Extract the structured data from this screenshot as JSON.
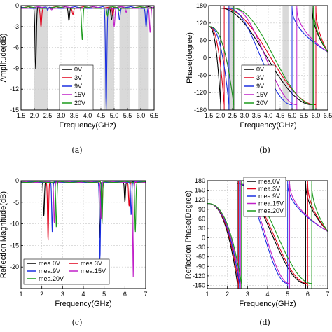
{
  "chart_data": [
    {
      "panel": "a",
      "type": "line",
      "caption": "(a)",
      "xlabel": "Frequency(GHz)",
      "ylabel": "Amplitude(dB)",
      "xlim": [
        1.5,
        6.5
      ],
      "ylim": [
        -15,
        0
      ],
      "xticks": [
        "1.5",
        "2.0",
        "2.5",
        "3.0",
        "3.5",
        "4.0",
        "4.5",
        "5.0",
        "5.5",
        "6.0",
        "6.5"
      ],
      "yticks": [
        "0",
        "-3",
        "-6",
        "-9",
        "-12",
        "-15"
      ],
      "shaded_bands": [
        [
          2.0,
          2.5
        ],
        [
          4.6,
          5.0
        ],
        [
          5.2,
          5.6
        ],
        [
          5.9,
          6.3
        ]
      ],
      "legend_position": "lower-center",
      "series": [
        {
          "name": "0V",
          "color": "#000000",
          "dips": [
            [
              2.05,
              -9.2
            ],
            [
              3.3,
              -2.2
            ],
            [
              4.9,
              -2.0
            ]
          ]
        },
        {
          "name": "3V",
          "color": "#e0001a",
          "dips": [
            [
              2.25,
              -3.0
            ],
            [
              3.45,
              -1.2
            ],
            [
              4.95,
              -1.5
            ]
          ]
        },
        {
          "name": "9V",
          "color": "#1a2fe0",
          "dips": [
            [
              2.5,
              -0.8
            ],
            [
              4.7,
              -15.0
            ],
            [
              5.2,
              -2.0
            ],
            [
              6.2,
              -3.0
            ]
          ]
        },
        {
          "name": "15V",
          "color": "#c020c8",
          "dips": [
            [
              2.65,
              -0.5
            ],
            [
              5.0,
              -3.0
            ],
            [
              5.45,
              -1.0
            ],
            [
              6.35,
              -4.0
            ]
          ]
        },
        {
          "name": "20V",
          "color": "#1a9a1a",
          "dips": [
            [
              3.8,
              -5.0
            ],
            [
              4.75,
              -1.5
            ],
            [
              5.2,
              -0.7
            ]
          ]
        }
      ]
    },
    {
      "panel": "b",
      "type": "line",
      "caption": "(b)",
      "xlabel": "Frequency(GHz)",
      "ylabel": "Phase(degree)",
      "xlim": [
        1.5,
        6.5
      ],
      "ylim": [
        -180,
        180
      ],
      "xticks": [
        "1.5",
        "2.0",
        "2.5",
        "3.0",
        "3.5",
        "4.0",
        "4.5",
        "5.0",
        "5.5",
        "6.0",
        "6.5"
      ],
      "yticks": [
        "180",
        "120",
        "60",
        "0",
        "-60",
        "-120",
        "-180"
      ],
      "shaded_bands": [
        [
          2.3,
          2.6
        ],
        [
          4.6,
          4.85
        ],
        [
          5.7,
          5.95
        ]
      ],
      "legend_position": "lower-center",
      "series": [
        {
          "name": "0V",
          "color": "#000000",
          "jumps": [
            2.0,
            5.85
          ]
        },
        {
          "name": "3V",
          "color": "#e0001a",
          "jumps": [
            2.15,
            6.0
          ]
        },
        {
          "name": "9V",
          "color": "#1a2fe0",
          "jumps": [
            2.35,
            5.0
          ]
        },
        {
          "name": "15V",
          "color": "#c020c8",
          "jumps": [
            2.55,
            5.2
          ]
        },
        {
          "name": "20V",
          "color": "#1a9a1a",
          "jumps": [
            2.55,
            5.9
          ]
        }
      ]
    },
    {
      "panel": "c",
      "type": "line",
      "caption": "(c)",
      "xlabel": "Frequency(GHz)",
      "ylabel": "Reflection Magnitude(dB)",
      "xlim": [
        1,
        7
      ],
      "ylim": [
        -25,
        0
      ],
      "xticks": [
        "1",
        "2",
        "3",
        "4",
        "5",
        "6",
        "7"
      ],
      "yticks": [
        "0",
        "-5",
        "-10",
        "-15",
        "-20"
      ],
      "legend_position": "lower-left",
      "series": [
        {
          "name": "mea.0V",
          "color": "#000000",
          "dips": [
            [
              2.1,
              -8.5
            ],
            [
              4.8,
              -13.5
            ],
            [
              6.0,
              -5.0
            ]
          ]
        },
        {
          "name": "mea.3V",
          "color": "#e0001a",
          "dips": [
            [
              2.3,
              -14.0
            ],
            [
              4.9,
              -7.0
            ],
            [
              6.2,
              -6.0
            ]
          ]
        },
        {
          "name": "mea.9V",
          "color": "#1a2fe0",
          "dips": [
            [
              2.5,
              -12.0
            ],
            [
              4.8,
              -18.5
            ],
            [
              6.3,
              -8.0
            ]
          ]
        },
        {
          "name": "mea.15V",
          "color": "#c020c8",
          "dips": [
            [
              2.6,
              -10.0
            ],
            [
              4.85,
              -9.0
            ],
            [
              6.4,
              -22.5
            ]
          ]
        },
        {
          "name": "mea.20V",
          "color": "#1a9a1a",
          "dips": [
            [
              2.7,
              -11.0
            ],
            [
              4.9,
              -10.0
            ],
            [
              6.5,
              -12.0
            ]
          ]
        }
      ]
    },
    {
      "panel": "d",
      "type": "line",
      "caption": "(d)",
      "xlabel": "Frequency(GHz)",
      "ylabel": "Reflection Phase(Degree)",
      "xlim": [
        1,
        7
      ],
      "ylim": [
        -160,
        180
      ],
      "xticks": [
        "1",
        "2",
        "3",
        "4",
        "5",
        "6",
        "7"
      ],
      "yticks": [
        "180",
        "150",
        "120",
        "90",
        "60",
        "30",
        "0",
        "-30",
        "-60",
        "-90",
        "-120",
        "-150"
      ],
      "legend_position": "top-left",
      "series": [
        {
          "name": "mea.0V",
          "color": "#000000",
          "jumps": [
            2.5,
            5.9
          ]
        },
        {
          "name": "mea.3V",
          "color": "#e0001a",
          "jumps": [
            2.55,
            6.0
          ]
        },
        {
          "name": "mea.9V",
          "color": "#1a2fe0",
          "jumps": [
            2.6,
            5.0
          ]
        },
        {
          "name": "mea.15V",
          "color": "#c020c8",
          "jumps": [
            2.65,
            5.1
          ]
        },
        {
          "name": "mea.20V",
          "color": "#1a9a1a",
          "jumps": [
            2.7,
            6.2
          ]
        }
      ]
    }
  ]
}
